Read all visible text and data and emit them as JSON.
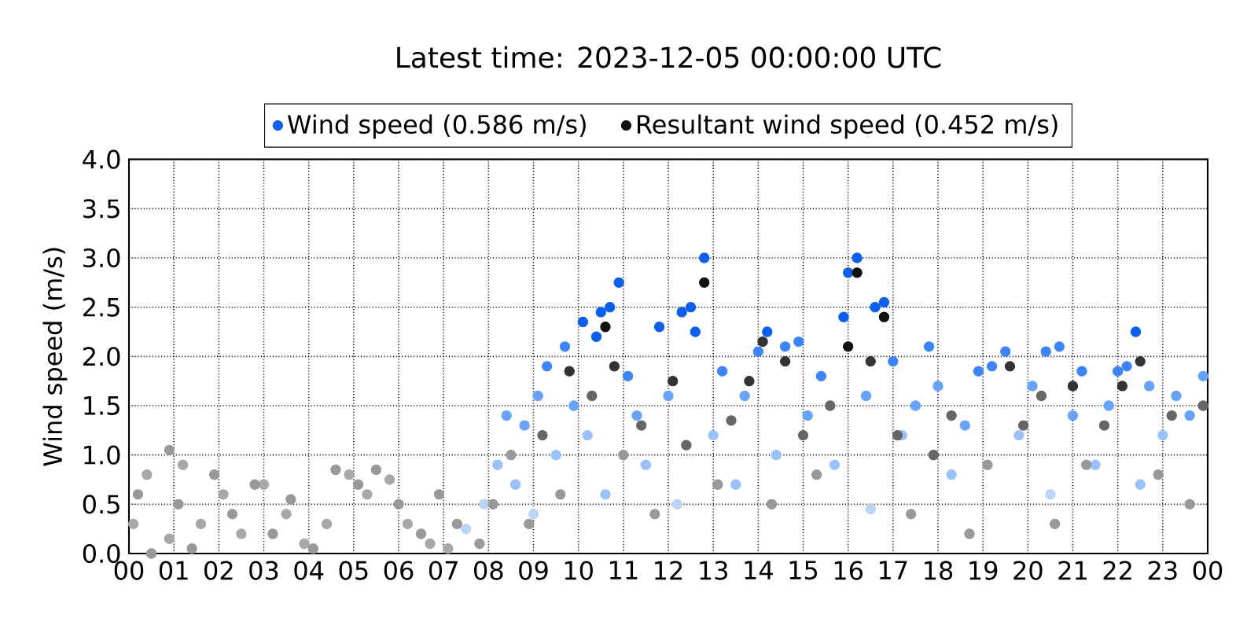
{
  "chart_data": {
    "type": "scatter",
    "title": "Latest time: 2023-12-05 00:00:00 UTC",
    "ylabel": "Wind speed (m/s)",
    "xlim": [
      0,
      24
    ],
    "ylim": [
      0,
      4
    ],
    "xticks": [
      {
        "value": 0,
        "label": "00"
      },
      {
        "value": 1,
        "label": "01"
      },
      {
        "value": 2,
        "label": "02"
      },
      {
        "value": 3,
        "label": "03"
      },
      {
        "value": 4,
        "label": "04"
      },
      {
        "value": 5,
        "label": "05"
      },
      {
        "value": 6,
        "label": "06"
      },
      {
        "value": 7,
        "label": "07"
      },
      {
        "value": 8,
        "label": "08"
      },
      {
        "value": 9,
        "label": "09"
      },
      {
        "value": 10,
        "label": "10"
      },
      {
        "value": 11,
        "label": "11"
      },
      {
        "value": 12,
        "label": "12"
      },
      {
        "value": 13,
        "label": "13"
      },
      {
        "value": 14,
        "label": "14"
      },
      {
        "value": 15,
        "label": "15"
      },
      {
        "value": 16,
        "label": "16"
      },
      {
        "value": 17,
        "label": "17"
      },
      {
        "value": 18,
        "label": "18"
      },
      {
        "value": 19,
        "label": "19"
      },
      {
        "value": 20,
        "label": "20"
      },
      {
        "value": 21,
        "label": "21"
      },
      {
        "value": 22,
        "label": "22"
      },
      {
        "value": 23,
        "label": "23"
      },
      {
        "value": 24,
        "label": "00"
      }
    ],
    "yticks": [
      {
        "value": 0,
        "label": "0.0"
      },
      {
        "value": 0.5,
        "label": "0.5"
      },
      {
        "value": 1,
        "label": "1.0"
      },
      {
        "value": 1.5,
        "label": "1.5"
      },
      {
        "value": 2,
        "label": "2.0"
      },
      {
        "value": 2.5,
        "label": "2.5"
      },
      {
        "value": 3,
        "label": "3.0"
      },
      {
        "value": 3.5,
        "label": "3.5"
      },
      {
        "value": 4,
        "label": "4.0"
      }
    ],
    "grid": true,
    "legend": "top",
    "marker": "circle",
    "series": [
      {
        "name": "Wind speed (0.586 m/s)",
        "color": "#0a5ff0",
        "x": [
          0.1,
          0.4,
          0.9,
          1.2,
          1.6,
          2.1,
          2.5,
          3.0,
          3.5,
          3.9,
          4.4,
          4.9,
          5.3,
          5.8,
          6.2,
          6.7,
          7.1,
          7.5,
          7.9,
          8.2,
          8.4,
          8.6,
          8.8,
          9.0,
          9.1,
          9.3,
          9.5,
          9.7,
          9.9,
          10.1,
          10.2,
          10.4,
          10.5,
          10.6,
          10.7,
          10.9,
          11.1,
          11.3,
          11.5,
          11.8,
          12.0,
          12.2,
          12.3,
          12.5,
          12.6,
          12.8,
          13.0,
          13.2,
          13.5,
          13.7,
          14.0,
          14.2,
          14.4,
          14.6,
          14.9,
          15.1,
          15.4,
          15.7,
          15.9,
          16.0,
          16.2,
          16.4,
          16.5,
          16.6,
          16.8,
          17.0,
          17.2,
          17.5,
          17.8,
          18.0,
          18.3,
          18.6,
          18.9,
          19.2,
          19.5,
          19.8,
          20.1,
          20.4,
          20.5,
          20.7,
          21.0,
          21.2,
          21.5,
          21.8,
          22.0,
          22.2,
          22.4,
          22.5,
          22.7,
          23.0,
          23.3,
          23.6,
          23.9
        ],
        "values": [
          0.3,
          0.8,
          0.15,
          0.9,
          0.3,
          0.6,
          0.2,
          0.7,
          0.4,
          0.1,
          0.3,
          0.8,
          0.6,
          0.75,
          0.3,
          0.1,
          0.05,
          0.25,
          0.5,
          0.9,
          1.4,
          0.7,
          1.3,
          0.4,
          1.6,
          1.9,
          1.0,
          2.1,
          1.5,
          2.35,
          1.2,
          2.2,
          2.45,
          0.6,
          2.5,
          2.75,
          1.8,
          1.4,
          0.9,
          2.3,
          1.6,
          0.5,
          2.45,
          2.5,
          2.25,
          3.0,
          1.2,
          1.85,
          0.7,
          1.6,
          2.05,
          2.25,
          1.0,
          2.1,
          2.15,
          1.4,
          1.8,
          0.9,
          2.4,
          2.85,
          3.0,
          1.6,
          0.45,
          2.5,
          2.55,
          1.95,
          1.2,
          1.5,
          2.1,
          1.7,
          0.8,
          1.3,
          1.85,
          1.9,
          2.05,
          1.2,
          1.7,
          2.05,
          0.6,
          2.1,
          1.4,
          1.85,
          0.9,
          1.5,
          1.85,
          1.9,
          2.25,
          0.7,
          1.7,
          1.2,
          1.6,
          1.4,
          1.8
        ],
        "colors": [
          "#a8a8a8",
          "#a8a8a8",
          "#a8a8a8",
          "#a8a8a8",
          "#a8a8a8",
          "#a8a8a8",
          "#a8a8a8",
          "#a8a8a8",
          "#a8a8a8",
          "#a8a8a8",
          "#a8a8a8",
          "#a8a8a8",
          "#a8a8a8",
          "#a8a8a8",
          "#a8a8a8",
          "#a8a8a8",
          "#a8a8a8",
          "#bcd4f5",
          "#bcd4f5",
          "#99c2ff",
          "#66a3ff",
          "#99c2ff",
          "#66a3ff",
          "#bcd4f5",
          "#66a3ff",
          "#3d85ff",
          "#99c2ff",
          "#3d85ff",
          "#66a3ff",
          "#0a5ff0",
          "#99c2ff",
          "#0a5ff0",
          "#0a5ff0",
          "#99c2ff",
          "#0a5ff0",
          "#0a5ff0",
          "#3d85ff",
          "#66a3ff",
          "#99c2ff",
          "#0a5ff0",
          "#66a3ff",
          "#bcd4f5",
          "#0a5ff0",
          "#0a5ff0",
          "#0a5ff0",
          "#0a5ff0",
          "#99c2ff",
          "#3d85ff",
          "#99c2ff",
          "#66a3ff",
          "#3d85ff",
          "#0a5ff0",
          "#99c2ff",
          "#3d85ff",
          "#3d85ff",
          "#66a3ff",
          "#3d85ff",
          "#99c2ff",
          "#0a5ff0",
          "#0a5ff0",
          "#0a5ff0",
          "#66a3ff",
          "#bcd4f5",
          "#0a5ff0",
          "#0a5ff0",
          "#3d85ff",
          "#99c2ff",
          "#66a3ff",
          "#3d85ff",
          "#66a3ff",
          "#99c2ff",
          "#66a3ff",
          "#3d85ff",
          "#3d85ff",
          "#3d85ff",
          "#99c2ff",
          "#66a3ff",
          "#3d85ff",
          "#bcd4f5",
          "#3d85ff",
          "#66a3ff",
          "#3d85ff",
          "#99c2ff",
          "#66a3ff",
          "#3d85ff",
          "#3d85ff",
          "#0a5ff0",
          "#99c2ff",
          "#66a3ff",
          "#99c2ff",
          "#66a3ff",
          "#66a3ff",
          "#66a3ff"
        ]
      },
      {
        "name": "Resultant wind speed (0.452 m/s)",
        "color": "#111111",
        "x": [
          0.2,
          0.5,
          0.9,
          1.1,
          1.4,
          1.9,
          2.3,
          2.8,
          3.2,
          3.6,
          4.1,
          4.6,
          5.1,
          5.5,
          6.0,
          6.5,
          6.9,
          7.3,
          7.8,
          8.1,
          8.5,
          8.9,
          9.2,
          9.6,
          9.8,
          10.3,
          10.6,
          10.8,
          11.0,
          11.4,
          11.7,
          12.1,
          12.4,
          12.8,
          13.1,
          13.4,
          13.8,
          14.1,
          14.3,
          14.6,
          15.0,
          15.3,
          15.6,
          16.0,
          16.2,
          16.5,
          16.8,
          17.1,
          17.4,
          17.9,
          18.3,
          18.7,
          19.1,
          19.6,
          19.9,
          20.3,
          20.6,
          21.0,
          21.3,
          21.7,
          22.1,
          22.5,
          22.9,
          23.2,
          23.6,
          23.9
        ],
        "values": [
          0.6,
          0.0,
          1.05,
          0.5,
          0.05,
          0.8,
          0.4,
          0.7,
          0.2,
          0.55,
          0.05,
          0.85,
          0.7,
          0.85,
          0.5,
          0.2,
          0.6,
          0.3,
          0.1,
          0.5,
          1.0,
          0.3,
          1.2,
          0.6,
          1.85,
          1.6,
          2.3,
          1.9,
          1.0,
          1.3,
          0.4,
          1.75,
          1.1,
          2.75,
          0.7,
          1.35,
          1.75,
          2.15,
          0.5,
          1.95,
          1.2,
          0.8,
          1.5,
          2.1,
          2.85,
          1.95,
          2.4,
          1.2,
          0.4,
          1.0,
          1.4,
          0.2,
          0.9,
          1.9,
          1.3,
          1.6,
          0.3,
          1.7,
          0.9,
          1.3,
          1.7,
          1.95,
          0.8,
          1.4,
          0.5,
          1.5
        ],
        "colors": [
          "#999999",
          "#999999",
          "#999999",
          "#999999",
          "#999999",
          "#999999",
          "#999999",
          "#999999",
          "#999999",
          "#999999",
          "#999999",
          "#999999",
          "#999999",
          "#999999",
          "#999999",
          "#999999",
          "#999999",
          "#999999",
          "#999999",
          "#999999",
          "#999999",
          "#999999",
          "#666666",
          "#999999",
          "#333333",
          "#666666",
          "#111111",
          "#333333",
          "#999999",
          "#666666",
          "#999999",
          "#333333",
          "#666666",
          "#111111",
          "#999999",
          "#666666",
          "#333333",
          "#333333",
          "#999999",
          "#333333",
          "#666666",
          "#999999",
          "#666666",
          "#111111",
          "#111111",
          "#333333",
          "#111111",
          "#666666",
          "#999999",
          "#666666",
          "#666666",
          "#999999",
          "#999999",
          "#333333",
          "#666666",
          "#666666",
          "#999999",
          "#333333",
          "#999999",
          "#666666",
          "#333333",
          "#333333",
          "#999999",
          "#666666",
          "#999999",
          "#666666"
        ]
      }
    ]
  }
}
